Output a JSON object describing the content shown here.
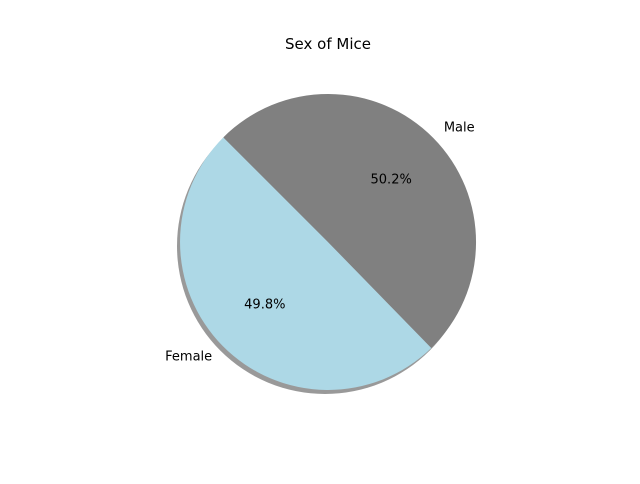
{
  "chart_data": {
    "type": "pie",
    "title": "Sex of Mice",
    "categories": [
      "Female",
      "Male"
    ],
    "values": [
      49.8,
      50.2
    ],
    "percent_labels": [
      "49.8%",
      "50.2%"
    ],
    "colors": [
      "#add8e6",
      "#808080"
    ],
    "shadow": true,
    "legend": "none"
  }
}
